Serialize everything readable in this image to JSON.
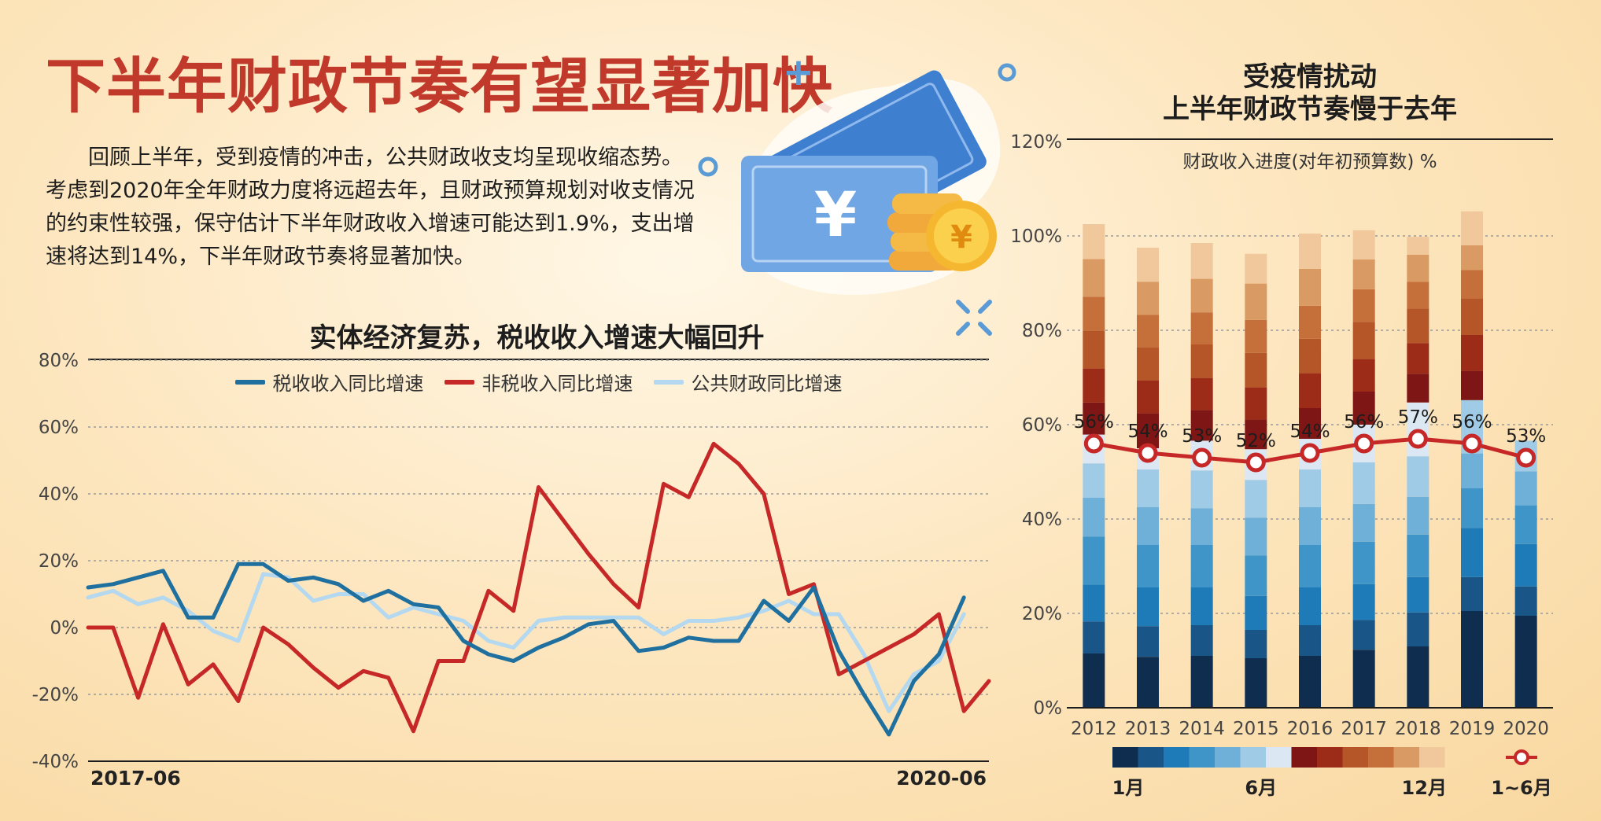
{
  "header": {
    "title": "下半年财政节奏有望显著加快",
    "intro": "回顾上半年，受到疫情的冲击，公共财政收支均呈现收缩态势。考虑到2020年全年财政力度将远超去年，且财政预算规划对收支情况的约束性较强，保守估计下半年财政收入增速可能达到1.9%，支出增速将达到14%，下半年财政节奏将显著加快。"
  },
  "colors": {
    "tax": "#1f6f9f",
    "nontax": "#c62828",
    "public": "#b3d8ef",
    "marker": "#c62828"
  },
  "chart_data": [
    {
      "type": "line",
      "title": "实体经济复苏，税收收入增速大幅回升",
      "ylim": [
        -40,
        80
      ],
      "y_ticks": [
        "80%",
        "60%",
        "40%",
        "20%",
        "0%",
        "-20%",
        "-40%"
      ],
      "y_tick_values": [
        80,
        60,
        40,
        20,
        0,
        -20,
        -40
      ],
      "x_start_label": "2017-06",
      "x_end_label": "2020-06",
      "x": [
        "2017-06",
        "2017-07",
        "2017-08",
        "2017-09",
        "2017-10",
        "2017-11",
        "2017-12",
        "2018-01",
        "2018-02",
        "2018-03",
        "2018-04",
        "2018-05",
        "2018-06",
        "2018-07",
        "2018-08",
        "2018-09",
        "2018-10",
        "2018-11",
        "2018-12",
        "2019-01",
        "2019-02",
        "2019-03",
        "2019-04",
        "2019-05",
        "2019-06",
        "2019-07",
        "2019-08",
        "2019-09",
        "2019-10",
        "2019-11",
        "2019-12",
        "2020-01",
        "2020-02",
        "2020-03",
        "2020-04",
        "2020-05",
        "2020-06"
      ],
      "series": [
        {
          "name": "税收收入同比增速",
          "values": [
            12,
            13,
            15,
            17,
            3,
            3,
            19,
            19,
            14,
            15,
            13,
            8,
            11,
            7,
            6,
            -4,
            -8,
            -10,
            -6,
            -3,
            1,
            2,
            -7,
            -6,
            -3,
            -4,
            -4,
            8,
            2,
            12,
            -7,
            -20,
            -32,
            -16,
            -8,
            9,
            null
          ]
        },
        {
          "name": "非税收入同比增速",
          "values": [
            0,
            0,
            -21,
            1,
            -17,
            -11,
            -22,
            0,
            -5,
            -12,
            -18,
            -13,
            -15,
            -31,
            -10,
            -10,
            11,
            5,
            42,
            32,
            22,
            13,
            6,
            43,
            39,
            55,
            49,
            40,
            10,
            13,
            -14,
            -10,
            -6,
            -2,
            4,
            -25,
            -16
          ]
        },
        {
          "name": "公共财政同比增速",
          "values": [
            9,
            11,
            7,
            9,
            5,
            -1,
            -4,
            16,
            15,
            8,
            10,
            10,
            3,
            6,
            4,
            2,
            -4,
            -6,
            2,
            3,
            3,
            3,
            3,
            -2,
            2,
            2,
            3,
            5,
            8,
            4,
            4,
            -8,
            -25,
            -14,
            -10,
            4,
            null
          ]
        }
      ]
    },
    {
      "type": "bar",
      "stacked": true,
      "title": "受疫情扰动\n上半年财政节奏慢于去年",
      "subtitle": "财政收入进度(对年初预算数) %",
      "ylim": [
        0,
        120
      ],
      "y_ticks": [
        "120%",
        "100%",
        "80%",
        "60%",
        "40%",
        "20%",
        "0%"
      ],
      "y_tick_values": [
        120,
        100,
        80,
        60,
        40,
        20,
        0
      ],
      "categories": [
        "2012",
        "2013",
        "2014",
        "2015",
        "2016",
        "2017",
        "2018",
        "2019",
        "2020"
      ],
      "month_segments": [
        [
          11.5,
          6.8,
          7.8,
          10.2,
          8.2,
          7.3,
          6.1,
          6.8,
          7.2,
          8.0,
          7.2,
          8.0,
          7.4
        ],
        [
          10.8,
          6.5,
          8.2,
          9.0,
          8.0,
          8.0,
          4.5,
          7.4,
          7.0,
          7.0,
          6.9,
          7.0,
          7.2
        ],
        [
          11.0,
          6.5,
          8.0,
          9.0,
          7.8,
          8.0,
          6.3,
          6.5,
          6.8,
          7.1,
          6.8,
          7.1,
          7.6
        ],
        [
          10.5,
          6.0,
          7.2,
          8.6,
          8.0,
          8.0,
          6.5,
          6.3,
          6.8,
          7.3,
          7.0,
          7.7,
          6.3
        ],
        [
          11.0,
          6.5,
          8.0,
          9.0,
          8.0,
          8.0,
          6.5,
          6.5,
          7.4,
          7.3,
          7.0,
          7.8,
          7.5
        ],
        [
          12.3,
          6.3,
          7.6,
          9.0,
          8.0,
          8.8,
          8.0,
          7.0,
          6.9,
          7.9,
          6.9,
          6.3,
          6.2
        ],
        [
          13.0,
          7.2,
          7.5,
          9.0,
          8.0,
          8.6,
          11.4,
          6.1,
          6.5,
          7.3,
          5.7,
          5.7,
          3.8
        ],
        [
          20.5,
          7.2,
          10.4,
          8.4,
          7.4,
          11.3,
          0,
          6.2,
          7.6,
          7.8,
          6.0,
          5.2,
          7.2
        ],
        [
          19.5,
          6.2,
          9.0,
          8.2,
          7.2,
          6.5,
          0,
          0,
          0,
          0,
          0,
          0,
          0
        ]
      ],
      "month_colors": [
        "#0f2d4f",
        "#1a5588",
        "#1e7bb8",
        "#3f95c8",
        "#6fb0d8",
        "#9fcbe7",
        "#dbe8f3",
        "#7d1614",
        "#9c2b17",
        "#b45628",
        "#c5703a",
        "#d99a63",
        "#f0c89c"
      ],
      "h1_values": [
        56,
        54,
        53,
        52,
        54,
        56,
        57,
        56,
        53
      ],
      "h1_labels": [
        "56%",
        "54%",
        "53%",
        "52%",
        "54%",
        "56%",
        "57%",
        "56%",
        "53%"
      ],
      "legend": {
        "first": "1月",
        "mid": "6月",
        "last": "12月",
        "marker": "1~6月"
      }
    }
  ]
}
